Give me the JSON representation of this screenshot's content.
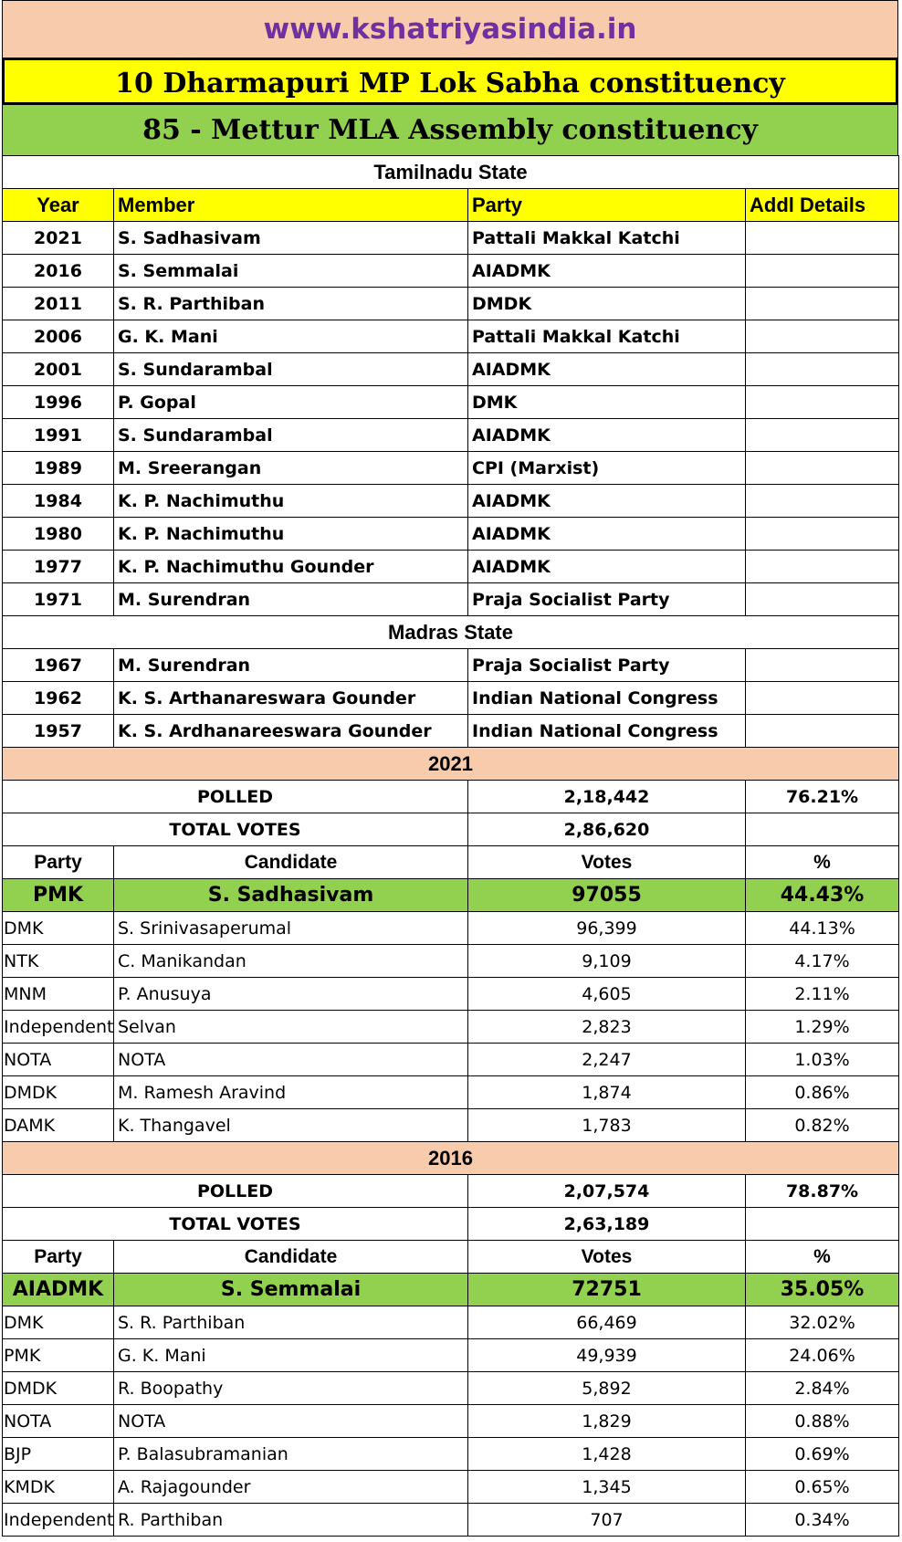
{
  "header": {
    "website": "www.kshatriyasindia.in",
    "lok_sabha": "10 Dharmapuri MP Lok Sabha constituency",
    "assembly": "85 - Mettur MLA Assembly constituency"
  },
  "members": {
    "columns": [
      "Year",
      "Member",
      "Party",
      "Addl Details"
    ],
    "tamilnadu": {
      "title": "Tamilnadu State",
      "rows": [
        [
          "2021",
          "S. Sadhasivam",
          "Pattali Makkal Katchi"
        ],
        [
          "2016",
          "S. Semmalai",
          "AIADMK"
        ],
        [
          "2011",
          "S. R. Parthiban",
          "DMDK"
        ],
        [
          "2006",
          "G. K. Mani",
          "Pattali Makkal Katchi"
        ],
        [
          "2001",
          "S. Sundarambal",
          "AIADMK"
        ],
        [
          "1996",
          "P. Gopal",
          "DMK"
        ],
        [
          "1991",
          "S. Sundarambal",
          "AIADMK"
        ],
        [
          "1989",
          "M. Sreerangan",
          "CPI (Marxist)"
        ],
        [
          "1984",
          "K. P. Nachimuthu",
          "AIADMK"
        ],
        [
          "1980",
          "K. P. Nachimuthu",
          "AIADMK"
        ],
        [
          "1977",
          "K. P. Nachimuthu Gounder",
          "AIADMK"
        ],
        [
          "1971",
          "M. Surendran",
          "Praja Socialist Party"
        ]
      ]
    },
    "madras": {
      "title": "Madras State",
      "rows": [
        [
          "1967",
          "M. Surendran",
          "Praja Socialist Party"
        ],
        [
          "1962",
          "K. S. Arthanareswara Gounder",
          "Indian National Congress"
        ],
        [
          "1957",
          "K. S. Ardhanareeswara Gounder",
          "Indian National Congress"
        ]
      ]
    }
  },
  "results": [
    {
      "year": "2021",
      "polled_label": "POLLED",
      "polled": "2,18,442",
      "polled_pct": "76.21%",
      "total_label": "TOTAL VOTES",
      "total": "2,86,620",
      "columns": [
        "Party",
        "Candidate",
        "Votes",
        "%"
      ],
      "winner": [
        "PMK",
        "S. Sadhasivam",
        "97055",
        "44.43%"
      ],
      "rows": [
        [
          "DMK",
          "S. Srinivasaperumal",
          "96,399",
          "44.13%"
        ],
        [
          "NTK",
          "C. Manikandan",
          "9,109",
          "4.17%"
        ],
        [
          "MNM",
          "P. Anusuya",
          "4,605",
          "2.11%"
        ],
        [
          "Independent",
          "Selvan",
          "2,823",
          "1.29%"
        ],
        [
          "NOTA",
          "NOTA",
          "2,247",
          "1.03%"
        ],
        [
          "DMDK",
          "M. Ramesh Aravind",
          "1,874",
          "0.86%"
        ],
        [
          "DAMK",
          "K. Thangavel",
          "1,783",
          "0.82%"
        ]
      ]
    },
    {
      "year": "2016",
      "polled_label": "POLLED",
      "polled": "2,07,574",
      "polled_pct": "78.87%",
      "total_label": "TOTAL VOTES",
      "total": "2,63,189",
      "columns": [
        "Party",
        "Candidate",
        "Votes",
        "%"
      ],
      "winner": [
        "AIADMK",
        "S. Semmalai",
        "72751",
        "35.05%"
      ],
      "rows": [
        [
          "DMK",
          "S. R. Parthiban",
          "66,469",
          "32.02%"
        ],
        [
          "PMK",
          "G. K. Mani",
          "49,939",
          "24.06%"
        ],
        [
          "DMDK",
          "R. Boopathy",
          "5,892",
          "2.84%"
        ],
        [
          "NOTA",
          "NOTA",
          "1,829",
          "0.88%"
        ],
        [
          "BJP",
          "P. Balasubramanian",
          "1,428",
          "0.69%"
        ],
        [
          "KMDK",
          "A. Rajagounder",
          "1,345",
          "0.65%"
        ],
        [
          "Independent",
          "R. Parthiban",
          "707",
          "0.34%"
        ]
      ]
    }
  ]
}
